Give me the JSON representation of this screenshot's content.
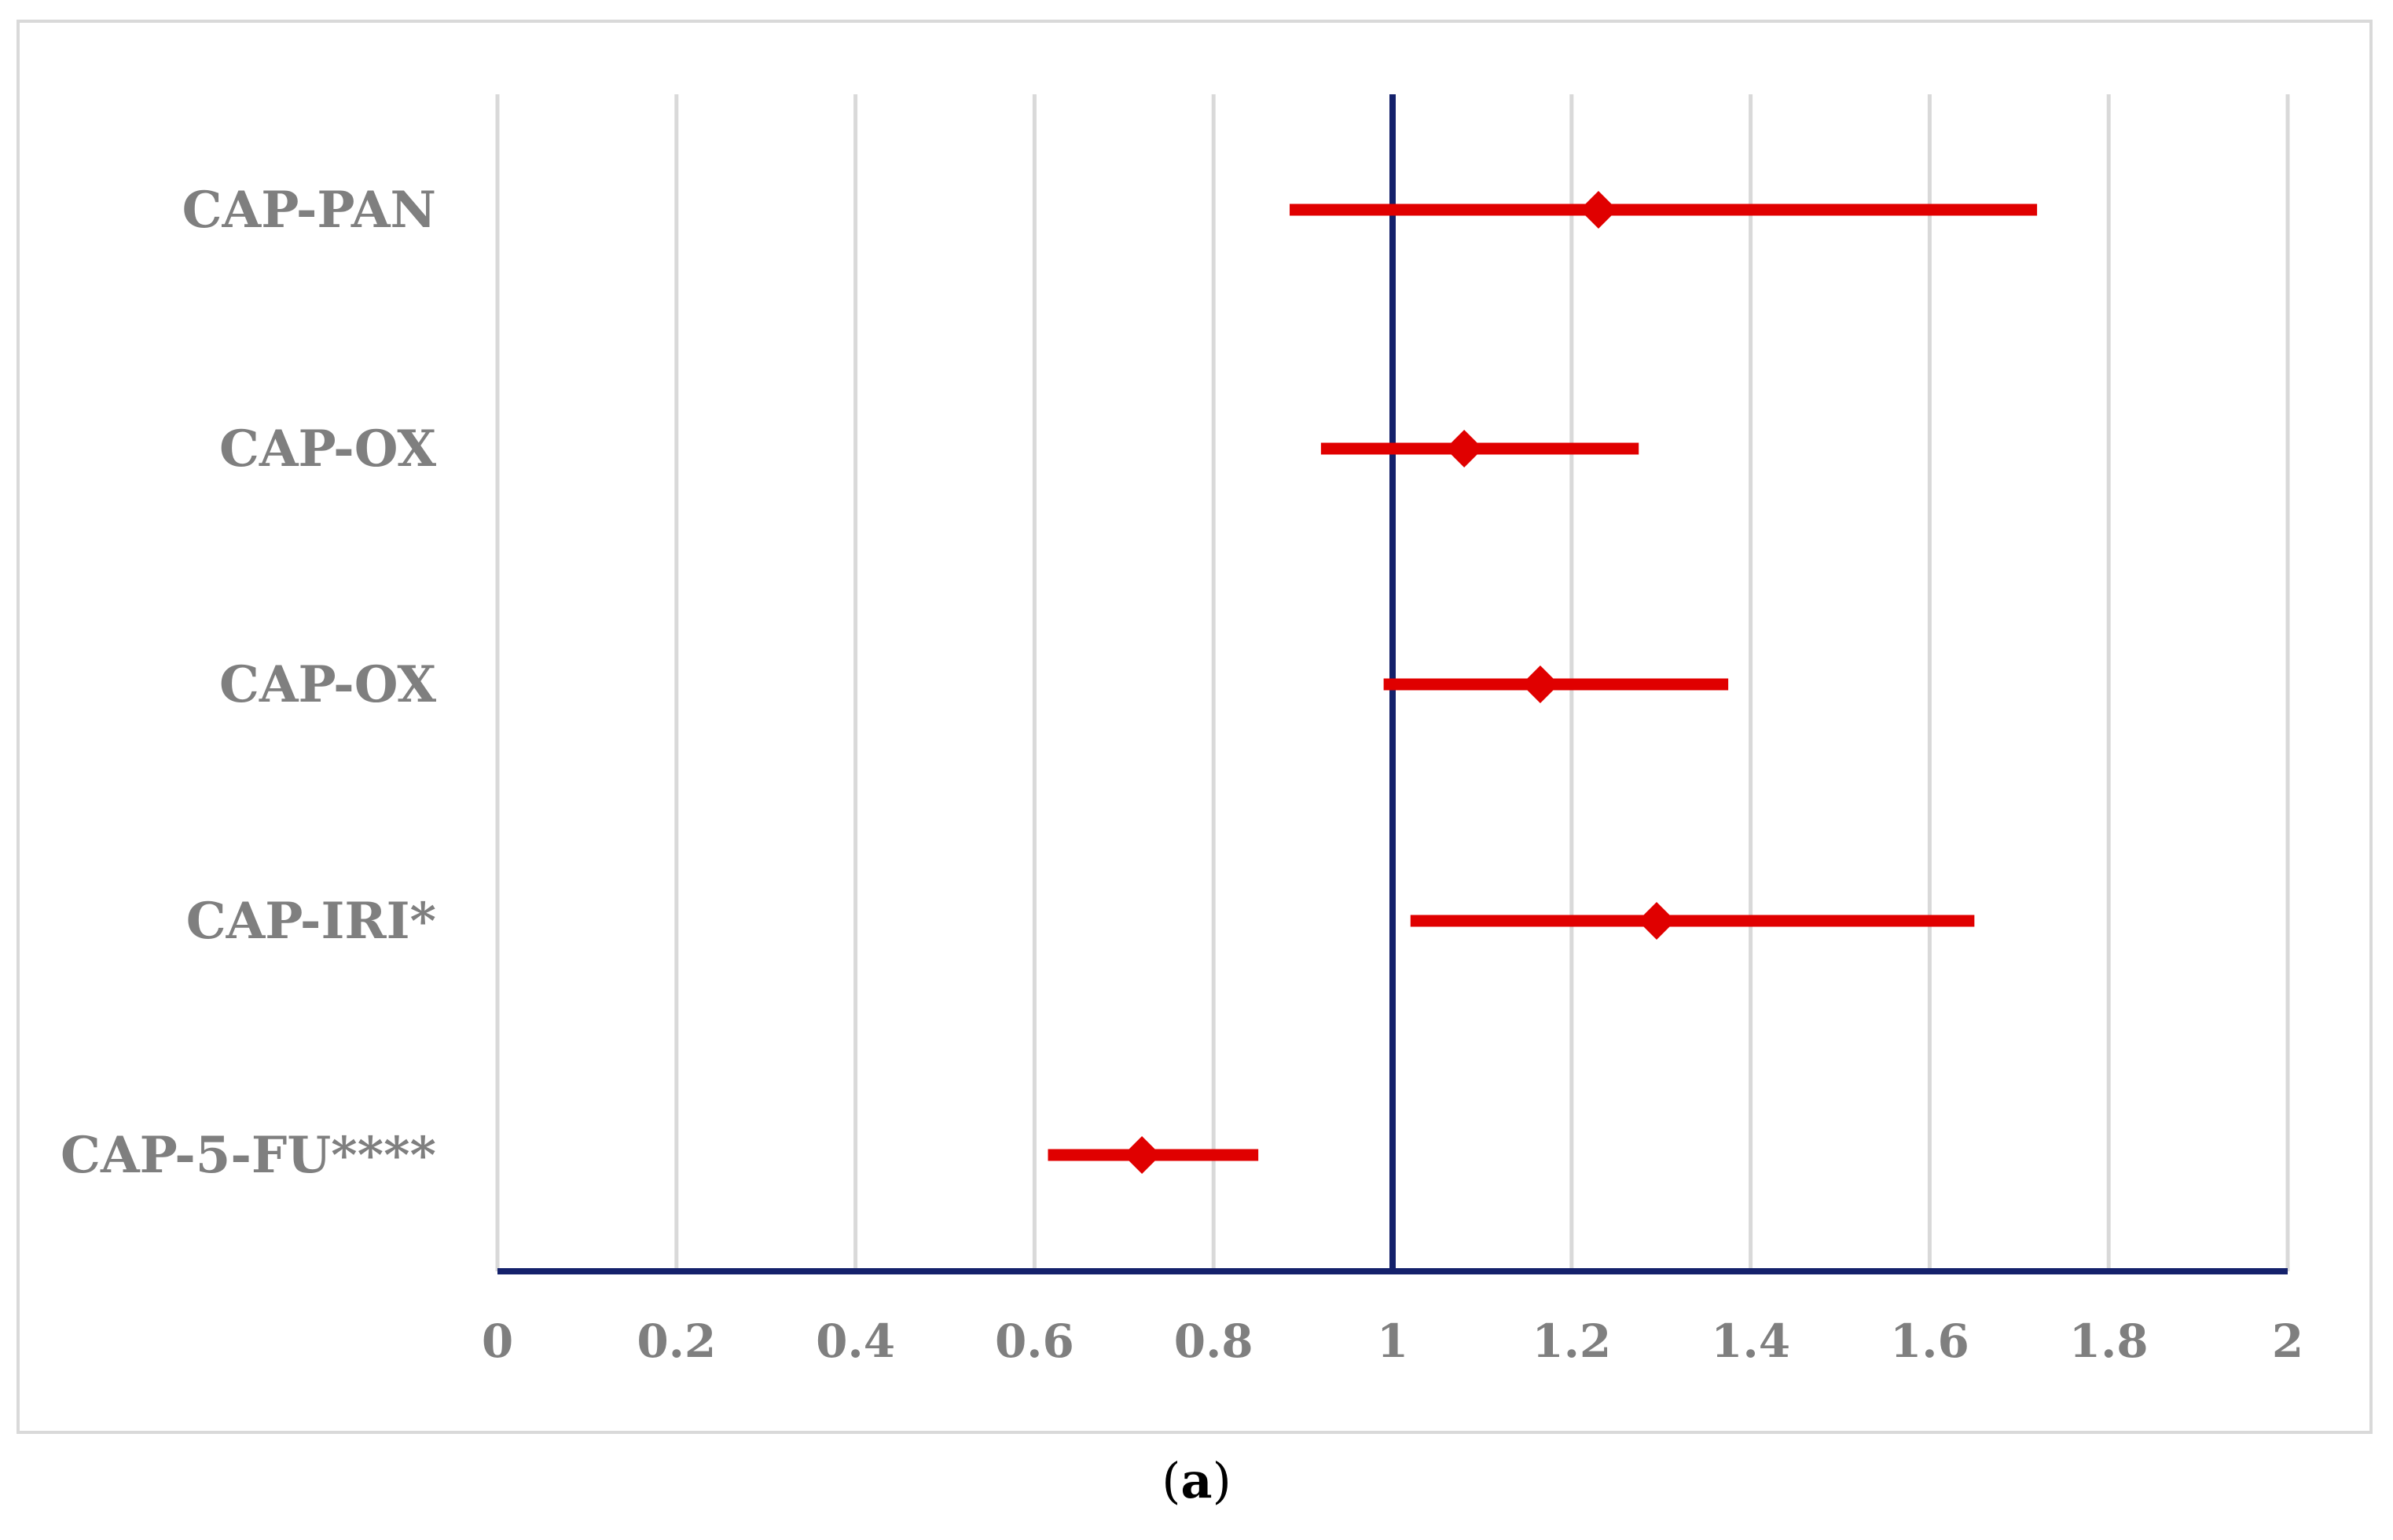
{
  "chart_data": {
    "type": "forest",
    "categories": [
      "CAP-PAN",
      "CAP-OX",
      "CAP-OX",
      "CAP-IRI*",
      "CAP-5-FU****"
    ],
    "estimates": [
      1.23,
      1.08,
      1.165,
      1.295,
      0.72
    ],
    "ci_lower": [
      0.885,
      0.92,
      0.99,
      1.02,
      0.615
    ],
    "ci_upper": [
      1.72,
      1.275,
      1.375,
      1.65,
      0.85
    ],
    "xlim": [
      0,
      2
    ],
    "x_ticks": [
      "0",
      "0.2",
      "0.4",
      "0.6",
      "0.8",
      "1",
      "1.2",
      "1.4",
      "1.6",
      "1.8",
      "2"
    ],
    "reference_line": 1,
    "grid": "vertical",
    "colors": {
      "marker": "#e00000",
      "reference": "#14216b",
      "axis": "#14216b",
      "grid": "#d9d9d9",
      "label": "#7f7f7f"
    }
  },
  "caption": {
    "open": "(",
    "letter": "a",
    "close": ")"
  }
}
